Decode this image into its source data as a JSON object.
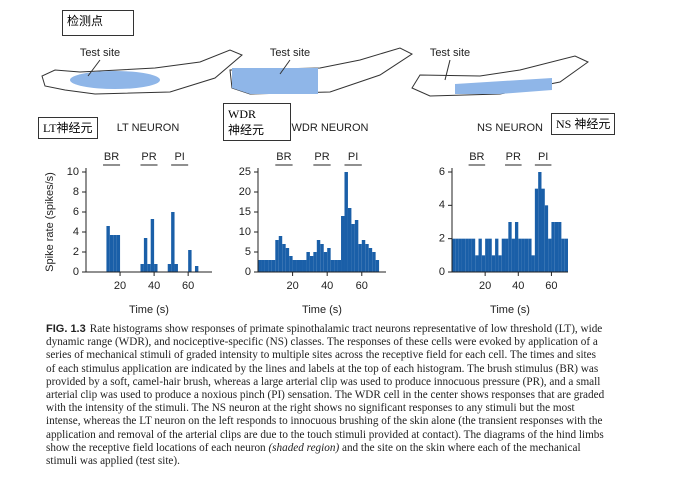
{
  "boxes": {
    "test_point": "检测点",
    "lt": "LT神经元",
    "wdr_line1": "WDR",
    "wdr_line2": "神经元",
    "ns": "NS 神经元"
  },
  "caption": {
    "label": "FIG. 1.3",
    "text": "Rate histograms show responses of primate spinothalamic tract neurons representative of low threshold (LT), wide dynamic range (WDR), and nociceptive-specific (NS) classes. The responses of these cells were evoked by application of a series of mechanical stimuli of graded intensity to multiple sites across the receptive field for each cell. The times and sites of each stimulus application are indicated by the lines and labels at the top of each histogram. The brush stimulus (BR) was provided by a soft, camel-hair brush, whereas a large arterial clip was used to produce innocuous pressure (PR), and a small arterial clip was used to produce a noxious pinch (PI) sensation. The WDR cell in the center shows responses that are graded with the intensity of the stimuli. The NS neuron at the right shows no significant responses to any stimuli but the most intense, whereas the LT neuron on the left responds to innocuous brushing of the skin alone (the transient responses with the application and removal of the arterial clips are due to the touch stimuli provided at contact). The diagrams of the hind limbs show the receptive field locations of each neuron",
    "italic": "(shaded region)",
    "text_end": "and the site on the skin where each of the mechanical stimuli was applied (test site)."
  },
  "chart_data": [
    {
      "type": "histogram",
      "title": "LT NEURON",
      "annotation": "Test site",
      "color": "#1a5fa8",
      "xlabel": "Time (s)",
      "ylabel": "Spike rate (spikes/s)",
      "bins": [
        0,
        2,
        4,
        6,
        8,
        10,
        12,
        14,
        16,
        18,
        20,
        22,
        24,
        26,
        28,
        30,
        32,
        34,
        36,
        38,
        40,
        42,
        44,
        46,
        48,
        50,
        52,
        54,
        56,
        58,
        60,
        62,
        64,
        66,
        68,
        70
      ],
      "values": [
        0,
        0,
        0,
        0,
        0,
        0,
        4.6,
        3.7,
        3.7,
        3.7,
        0,
        0,
        0,
        0,
        0,
        0,
        0.8,
        3.4,
        0.8,
        5.3,
        0.8,
        0,
        0,
        0,
        0.8,
        6,
        0.8,
        0,
        0,
        0,
        2.2,
        0,
        0.6,
        0,
        0
      ],
      "xlim": [
        0,
        74
      ],
      "xticks": [
        20,
        40,
        60
      ],
      "ylim": [
        0,
        10
      ],
      "yticks": [
        0,
        2,
        4,
        6,
        8,
        10
      ],
      "stimuli": [
        {
          "label": "BR",
          "start": 10,
          "end": 20
        },
        {
          "label": "PR",
          "start": 32,
          "end": 42
        },
        {
          "label": "PI",
          "start": 50,
          "end": 60
        }
      ]
    },
    {
      "type": "histogram",
      "title": "WDR NEURON",
      "annotation": "Test site",
      "color": "#1a5fa8",
      "xlabel": "Time (s)",
      "bins": [
        0,
        2,
        4,
        6,
        8,
        10,
        12,
        14,
        16,
        18,
        20,
        22,
        24,
        26,
        28,
        30,
        32,
        34,
        36,
        38,
        40,
        42,
        44,
        46,
        48,
        50,
        52,
        54,
        56,
        58,
        60,
        62,
        64,
        66,
        68,
        70
      ],
      "values": [
        3,
        3,
        3,
        3,
        3,
        8,
        9,
        7,
        6,
        4,
        3,
        3,
        3,
        3,
        5,
        4,
        5,
        8,
        7,
        5,
        6,
        3,
        3,
        3,
        14,
        25,
        16,
        12,
        13,
        7,
        8,
        7,
        6,
        5,
        3
      ],
      "xlim": [
        0,
        74
      ],
      "xticks": [
        20,
        40,
        60
      ],
      "ylim": [
        0,
        25
      ],
      "yticks": [
        0,
        5,
        10,
        15,
        20,
        25
      ],
      "stimuli": [
        {
          "label": "BR",
          "start": 10,
          "end": 20
        },
        {
          "label": "PR",
          "start": 32,
          "end": 42
        },
        {
          "label": "PI",
          "start": 50,
          "end": 60
        }
      ]
    },
    {
      "type": "histogram",
      "title": "NS NEURON",
      "annotation": "Test site",
      "color": "#1a5fa8",
      "xlabel": "Time (s)",
      "bins": [
        0,
        2,
        4,
        6,
        8,
        10,
        12,
        14,
        16,
        18,
        20,
        22,
        24,
        26,
        28,
        30,
        32,
        34,
        36,
        38,
        40,
        42,
        44,
        46,
        48,
        50,
        52,
        54,
        56,
        58,
        60,
        62,
        64,
        66,
        68,
        70
      ],
      "values": [
        2,
        2,
        2,
        2,
        2,
        2,
        2,
        1,
        2,
        1,
        2,
        2,
        1,
        2,
        1,
        2,
        2,
        3,
        2,
        3,
        2,
        2,
        2,
        2,
        1,
        5,
        6,
        5,
        4,
        2,
        3,
        3,
        3,
        2,
        2
      ],
      "xlim": [
        0,
        70
      ],
      "xticks": [
        20,
        40,
        60
      ],
      "ylim": [
        0,
        6
      ],
      "yticks": [
        0,
        2,
        4,
        6
      ],
      "stimuli": [
        {
          "label": "BR",
          "start": 10,
          "end": 20
        },
        {
          "label": "PR",
          "start": 32,
          "end": 42
        },
        {
          "label": "PI",
          "start": 50,
          "end": 60
        }
      ]
    }
  ]
}
